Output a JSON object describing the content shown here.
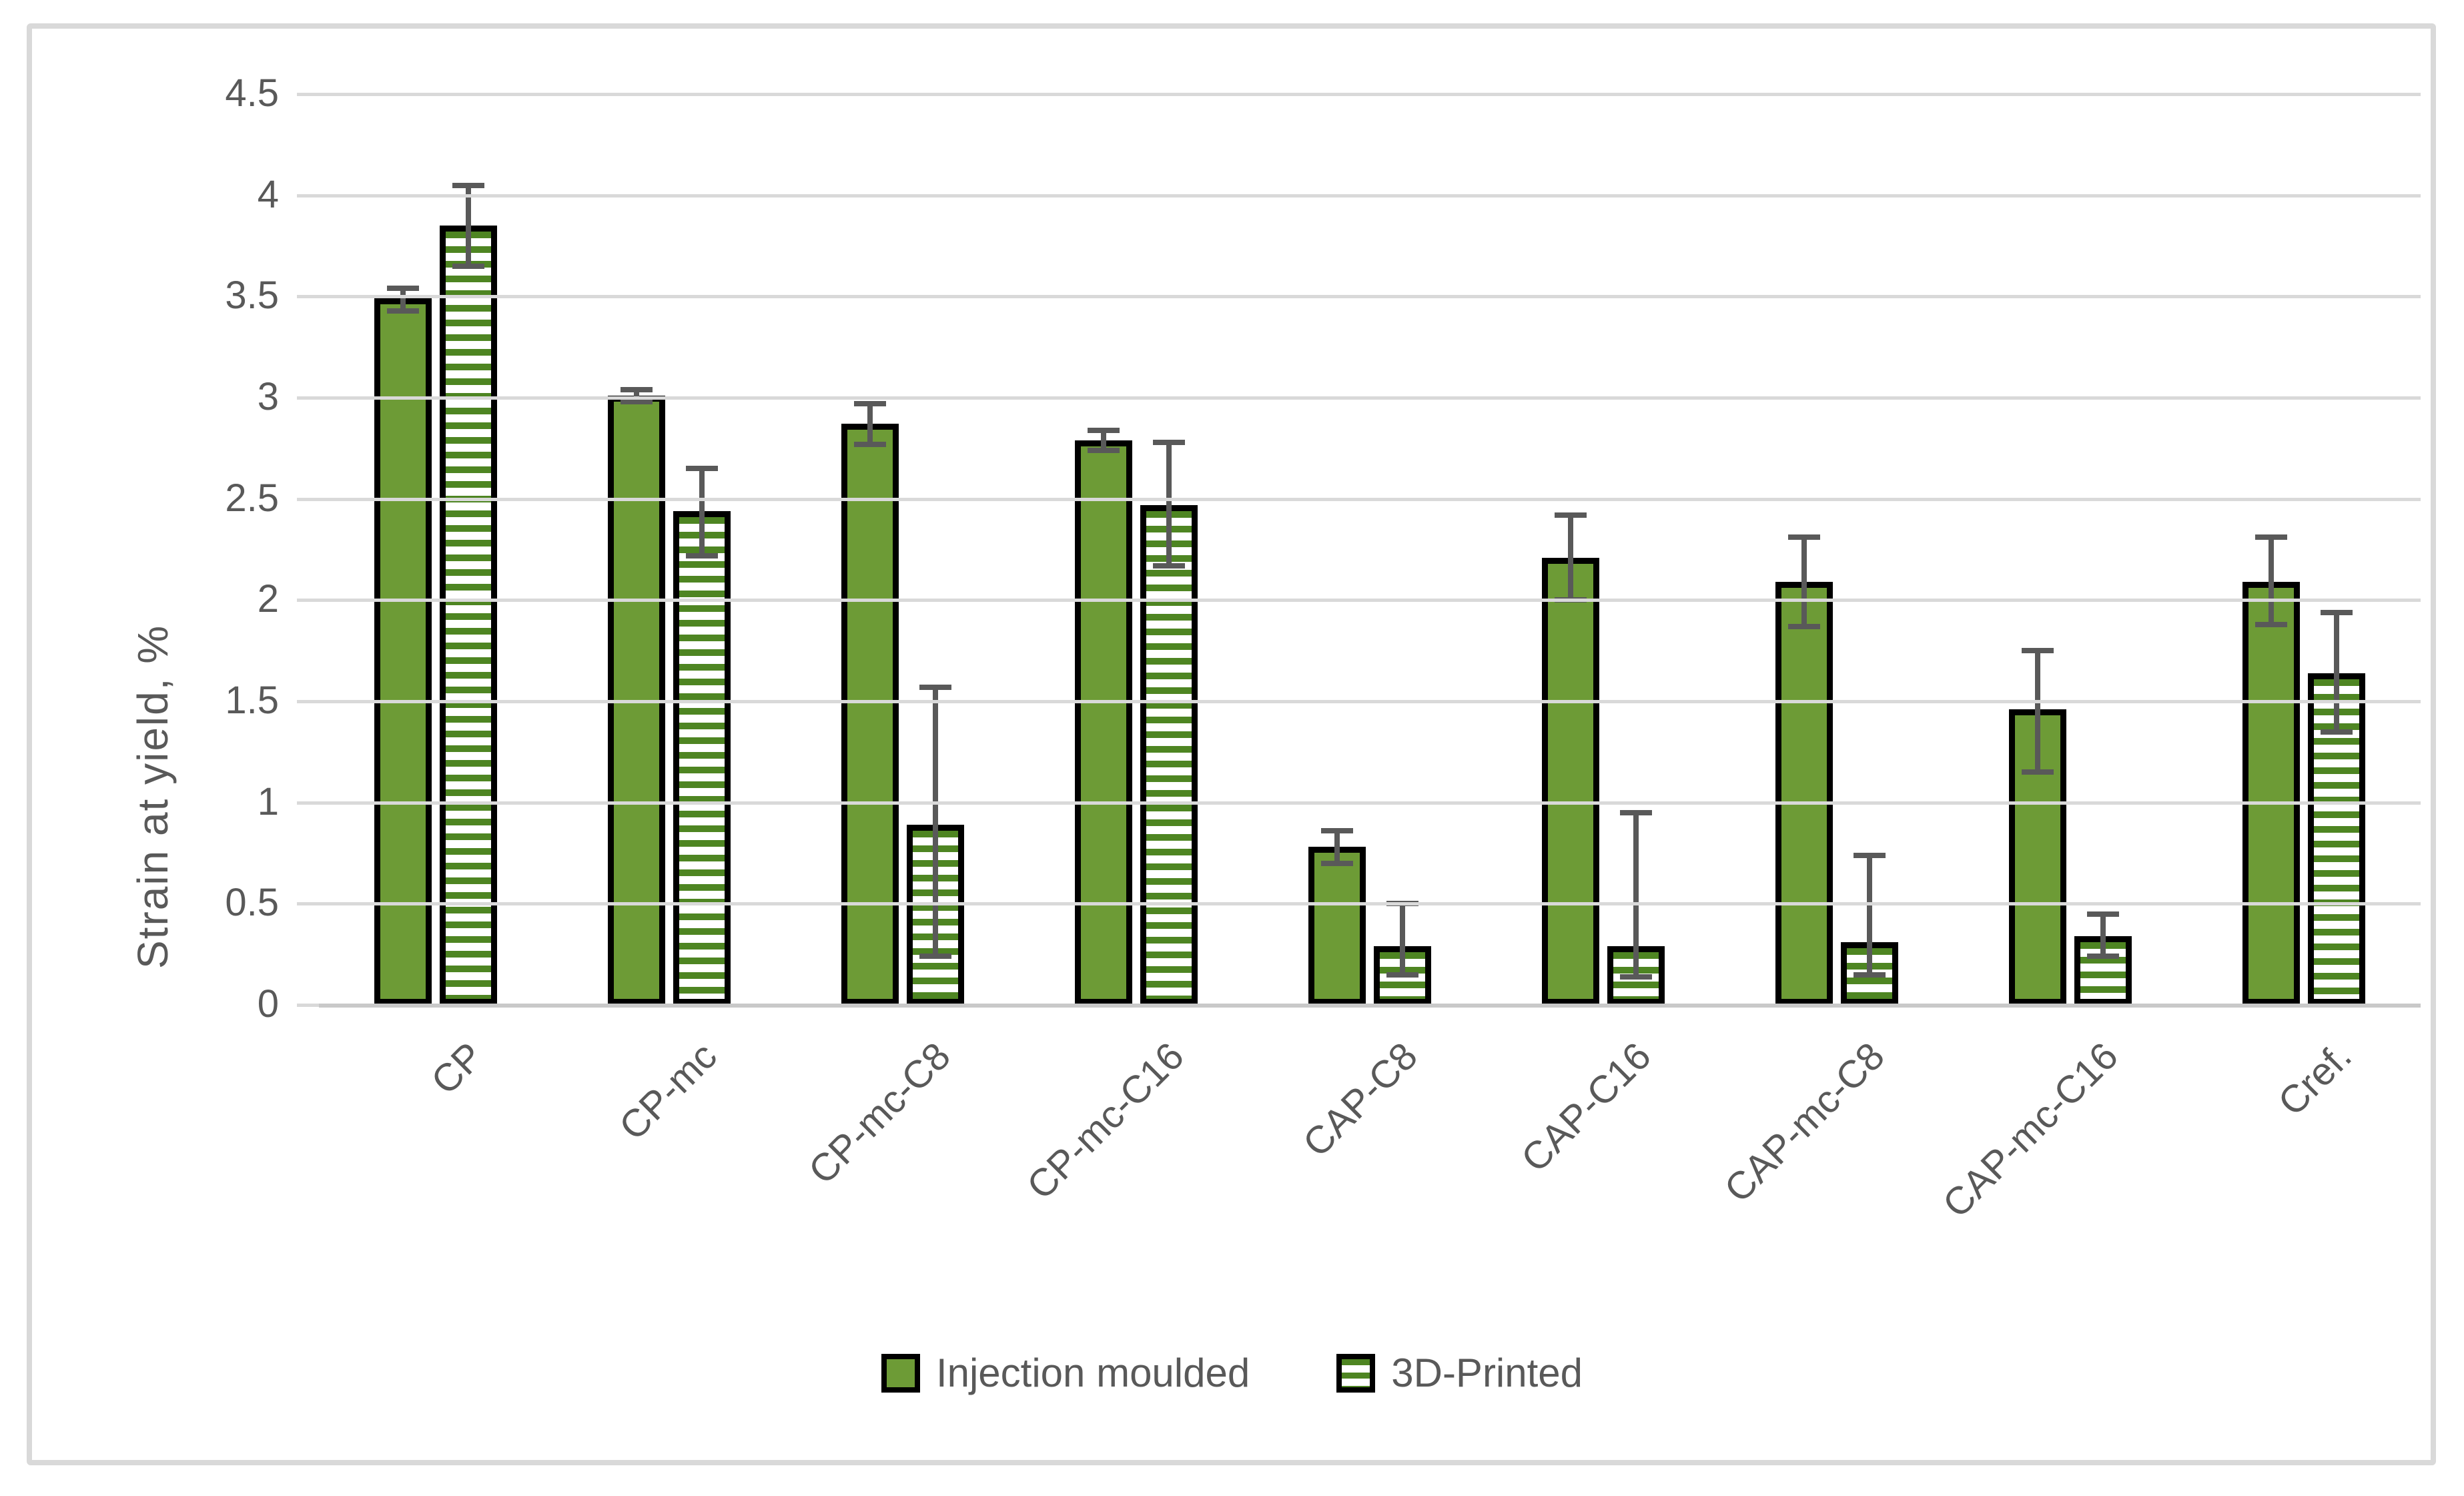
{
  "chart_data": {
    "type": "bar",
    "title": "",
    "xlabel": "",
    "ylabel": "Strain at yield, %",
    "ylim": [
      0,
      4.5
    ],
    "ytick_step": 0.5,
    "yticks": [
      4.5,
      4,
      3.5,
      3,
      2.5,
      2,
      1.5,
      1,
      0.5,
      0
    ],
    "ytick_labels": [
      "4.5",
      "4",
      "3.5",
      "3",
      "2.5",
      "2",
      "1.5",
      "1",
      "0.5",
      "0"
    ],
    "grid": true,
    "legend_position": "bottom",
    "categories": [
      "CP",
      "CP-mc",
      "CP-mc-C8",
      "CP-mc-C16",
      "CAP-C8",
      "CAP-C16",
      "CAP-mc-C8",
      "CAP-mc-C16",
      "Cref."
    ],
    "series": [
      {
        "name": "Injection moulded",
        "style": "solid",
        "values": [
          3.49,
          3.01,
          2.87,
          2.79,
          0.78,
          2.21,
          2.09,
          1.46,
          2.09
        ],
        "err_up": [
          0.05,
          0.03,
          0.1,
          0.05,
          0.08,
          0.21,
          0.22,
          0.29,
          0.22
        ],
        "err_down": [
          0.06,
          0.03,
          0.1,
          0.05,
          0.08,
          0.21,
          0.22,
          0.31,
          0.21
        ]
      },
      {
        "name": "3D-Printed",
        "style": "striped",
        "values": [
          3.85,
          2.44,
          0.89,
          2.47,
          0.29,
          0.29,
          0.31,
          0.34,
          1.64
        ],
        "err_up": [
          0.2,
          0.21,
          0.68,
          0.31,
          0.21,
          0.66,
          0.43,
          0.11,
          0.3
        ],
        "err_down": [
          0.2,
          0.22,
          0.65,
          0.3,
          0.14,
          0.15,
          0.16,
          0.1,
          0.29
        ]
      }
    ],
    "colors": {
      "bar_solid_fill": "#6d9b36",
      "bar_stripe_green": "#4e8522",
      "bar_stripe_white": "#ffffff",
      "bar_outline": "#000000",
      "error_bar": "#595959",
      "gridline": "#d9d9d9",
      "axis_line": "#c9c9c9",
      "axis_text": "#595959",
      "figure_border": "#d9d9d9",
      "background": "#ffffff"
    }
  }
}
